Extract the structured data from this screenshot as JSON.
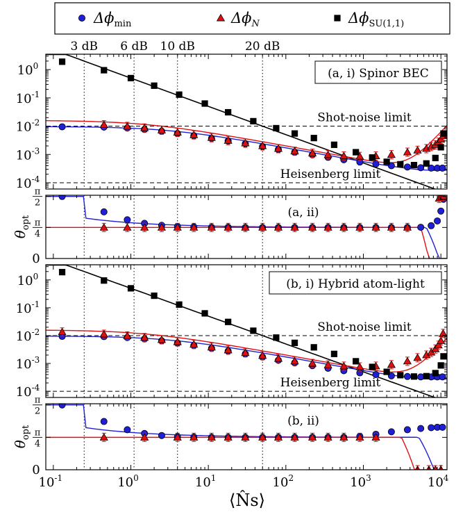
{
  "legend": {
    "entries": [
      {
        "symbol": "Δϕ",
        "sub": "min",
        "color": "#1f1fd6",
        "marker": "circle"
      },
      {
        "symbol": "Δϕ",
        "sub": "N",
        "color": "#e01010",
        "marker": "triangle"
      },
      {
        "symbol": "Δϕ",
        "sub": "SU(1,1)",
        "color": "#000000",
        "marker": "square"
      }
    ],
    "placement": "top"
  },
  "db_labels": [
    {
      "text": "3 dB",
      "x": 0.25
    },
    {
      "text": "6 dB",
      "x": 1.1
    },
    {
      "text": "10 dB",
      "x": 4
    },
    {
      "text": "20 dB",
      "x": 50
    }
  ],
  "reference_lines": {
    "shot_noise_label": "Shot-noise limit",
    "heisenberg_label": "Heisenberg limit"
  },
  "xlabel": "⟨N̂s⟩",
  "chart_data": [
    {
      "type": "scatter",
      "panel": "a-i",
      "label": "(a, i) Spinor BEC",
      "xscale": "log",
      "yscale": "log",
      "xlim": [
        0.08,
        12000
      ],
      "ylim": [
        6e-05,
        3.5
      ],
      "yticks": [
        "10^-4",
        "10^-3",
        "10^-2",
        "10^-1",
        "10^0"
      ],
      "shot_noise": 0.01,
      "heisenberg": 0.0001,
      "series": [
        {
          "name": "Δϕmin",
          "x": [
            0.13,
            0.45,
            0.9,
            1.5,
            2.5,
            4,
            6.5,
            11,
            18,
            30,
            50,
            80,
            130,
            220,
            350,
            560,
            900,
            1450,
            2300,
            3700,
            5500,
            7500,
            9000,
            10500
          ],
          "y": [
            0.0095,
            0.0093,
            0.0086,
            0.0077,
            0.0066,
            0.0055,
            0.0046,
            0.0037,
            0.003,
            0.0024,
            0.0019,
            0.0015,
            0.0012,
            0.00097,
            0.00079,
            0.00065,
            0.00054,
            0.00046,
            0.0004,
            0.00036,
            0.00034,
            0.00033,
            0.00033,
            0.00033
          ]
        },
        {
          "name": "ΔϕN",
          "x": [
            0.45,
            0.9,
            1.5,
            2.5,
            4,
            6.5,
            11,
            18,
            30,
            50,
            80,
            130,
            220,
            350,
            560,
            900,
            1450,
            2300,
            3700,
            5000,
            6500,
            7500,
            8500,
            9300,
            10000,
            10700
          ],
          "y": [
            0.0112,
            0.0098,
            0.0086,
            0.0072,
            0.006,
            0.0049,
            0.0039,
            0.0031,
            0.0025,
            0.002,
            0.0016,
            0.0013,
            0.0011,
            0.00097,
            0.00088,
            0.00085,
            0.00088,
            0.00098,
            0.0012,
            0.0014,
            0.0016,
            0.0019,
            0.0022,
            0.0027,
            0.0034,
            0.0045
          ]
        },
        {
          "name": "ΔϕSU(1,1)",
          "x": [
            0.13,
            0.45,
            1.0,
            2.0,
            4.2,
            9,
            18,
            38,
            75,
            130,
            230,
            420,
            800,
            1300,
            2000,
            3000,
            4500,
            6500,
            8500,
            10000,
            10800
          ],
          "y": [
            1.9,
            0.95,
            0.5,
            0.27,
            0.13,
            0.063,
            0.031,
            0.015,
            0.0085,
            0.0055,
            0.0038,
            0.0022,
            0.0012,
            0.00078,
            0.00055,
            0.00045,
            0.00042,
            0.00048,
            0.00075,
            0.0018,
            0.0055
          ]
        }
      ]
    },
    {
      "type": "scatter",
      "panel": "a-ii",
      "label": "(a, ii)",
      "xscale": "log",
      "ylim": [
        0,
        1.6
      ],
      "ylabel": "θopt",
      "yticks": [
        "0",
        "π/4",
        "π/2"
      ],
      "series": [
        {
          "name": "Δϕmin",
          "x": [
            0.13,
            0.45,
            0.9,
            1.5,
            2.5,
            4,
            6.5,
            11,
            18,
            30,
            50,
            80,
            130,
            220,
            350,
            560,
            900,
            1450,
            2300,
            3700,
            5500,
            7500,
            9000,
            10000,
            10800
          ],
          "y": [
            1.5708,
            1.18,
            0.98,
            0.89,
            0.84,
            0.81,
            0.8,
            0.79,
            0.79,
            0.785,
            0.785,
            0.785,
            0.785,
            0.785,
            0.785,
            0.785,
            0.785,
            0.785,
            0.785,
            0.785,
            0.79,
            0.83,
            0.95,
            1.2,
            1.5
          ]
        },
        {
          "name": "ΔϕN",
          "x": [
            0.45,
            0.9,
            1.5,
            2.5,
            4,
            6.5,
            11,
            18,
            30,
            50,
            80,
            130,
            220,
            350,
            560,
            900,
            1450,
            2300,
            3700,
            9500,
            10200,
            10800
          ],
          "y": [
            0.7854,
            0.7854,
            0.7854,
            0.7854,
            0.7854,
            0.7854,
            0.7854,
            0.7854,
            0.7854,
            0.7854,
            0.7854,
            0.7854,
            0.7854,
            0.7854,
            0.7854,
            0.7854,
            0.7854,
            0.7854,
            0.7854,
            1.52,
            1.56,
            1.57
          ]
        }
      ]
    },
    {
      "type": "scatter",
      "panel": "b-i",
      "label": "(b, i) Hybrid atom-light",
      "xscale": "log",
      "yscale": "log",
      "xlim": [
        0.08,
        12000
      ],
      "ylim": [
        6e-05,
        3.5
      ],
      "yticks": [
        "10^-4",
        "10^-3",
        "10^-2",
        "10^-1",
        "10^0"
      ],
      "shot_noise": 0.01,
      "heisenberg": 0.0001,
      "series": [
        {
          "name": "Δϕmin",
          "x": [
            0.13,
            0.45,
            0.9,
            1.5,
            2.5,
            4,
            6.5,
            11,
            18,
            30,
            50,
            80,
            130,
            220,
            350,
            560,
            900,
            1450,
            2300,
            3700,
            5500,
            7500,
            9000,
            10500
          ],
          "y": [
            0.0094,
            0.0092,
            0.0085,
            0.0076,
            0.0065,
            0.0054,
            0.0044,
            0.0035,
            0.0028,
            0.0022,
            0.0017,
            0.0013,
            0.00105,
            0.00083,
            0.00067,
            0.00055,
            0.00046,
            0.0004,
            0.00036,
            0.00034,
            0.00033,
            0.00033,
            0.00033,
            0.00033
          ]
        },
        {
          "name": "ΔϕN",
          "x": [
            0.13,
            0.45,
            0.9,
            1.5,
            2.5,
            4,
            6.5,
            11,
            18,
            30,
            50,
            80,
            130,
            220,
            350,
            560,
            900,
            1450,
            2300,
            3700,
            5000,
            6500,
            7500,
            8500,
            9300,
            10000,
            10700
          ],
          "y": [
            0.0135,
            0.0112,
            0.0097,
            0.0085,
            0.0071,
            0.0059,
            0.0048,
            0.0038,
            0.003,
            0.0024,
            0.0019,
            0.0015,
            0.0012,
            0.001,
            0.00088,
            0.0008,
            0.00075,
            0.0008,
            0.0009,
            0.0012,
            0.0016,
            0.002,
            0.0025,
            0.0033,
            0.0045,
            0.0065,
            0.012
          ]
        },
        {
          "name": "ΔϕSU(1,1)",
          "x": [
            0.13,
            0.45,
            1.0,
            2.0,
            4.2,
            9,
            18,
            38,
            75,
            130,
            230,
            420,
            800,
            1300,
            2000,
            3000,
            4500,
            6500,
            8500,
            10000,
            10800
          ],
          "y": [
            1.9,
            0.95,
            0.5,
            0.27,
            0.13,
            0.063,
            0.031,
            0.015,
            0.0085,
            0.0055,
            0.0038,
            0.0022,
            0.0012,
            0.00075,
            0.0005,
            0.00038,
            0.00034,
            0.00035,
            0.00045,
            0.00085,
            0.0018
          ]
        }
      ]
    },
    {
      "type": "scatter",
      "panel": "b-ii",
      "label": "(b, ii)",
      "xscale": "log",
      "ylim": [
        0,
        1.6
      ],
      "ylabel": "θopt",
      "yticks": [
        "0",
        "π/4",
        "π/2"
      ],
      "xticks": [
        "10^-1",
        "10^0",
        "10^1",
        "10^2",
        "10^3",
        "10^4"
      ],
      "series": [
        {
          "name": "Δϕmin",
          "x": [
            0.13,
            0.45,
            0.9,
            1.5,
            2.5,
            4,
            6.5,
            11,
            18,
            30,
            50,
            80,
            130,
            220,
            350,
            560,
            900,
            1450,
            2300,
            3700,
            5500,
            7500,
            9000,
            10500
          ],
          "y": [
            1.5708,
            1.17,
            0.97,
            0.88,
            0.83,
            0.8,
            0.79,
            0.785,
            0.785,
            0.785,
            0.785,
            0.785,
            0.785,
            0.785,
            0.785,
            0.785,
            0.81,
            0.86,
            0.92,
            0.97,
            1.0,
            1.02,
            1.03,
            1.03
          ]
        },
        {
          "name": "ΔϕN",
          "x": [
            0.45,
            1.5,
            4,
            6.5,
            11,
            18,
            30,
            50,
            80,
            130,
            220,
            350,
            560,
            900,
            1450,
            5000,
            7000,
            8500,
            10000
          ],
          "y": [
            0.7854,
            0.7854,
            0.7854,
            0.7854,
            0.7854,
            0.7854,
            0.7854,
            0.7854,
            0.7854,
            0.7854,
            0.7854,
            0.7854,
            0.7854,
            0.7854,
            0.7854,
            0,
            0,
            0,
            0
          ]
        }
      ]
    }
  ]
}
